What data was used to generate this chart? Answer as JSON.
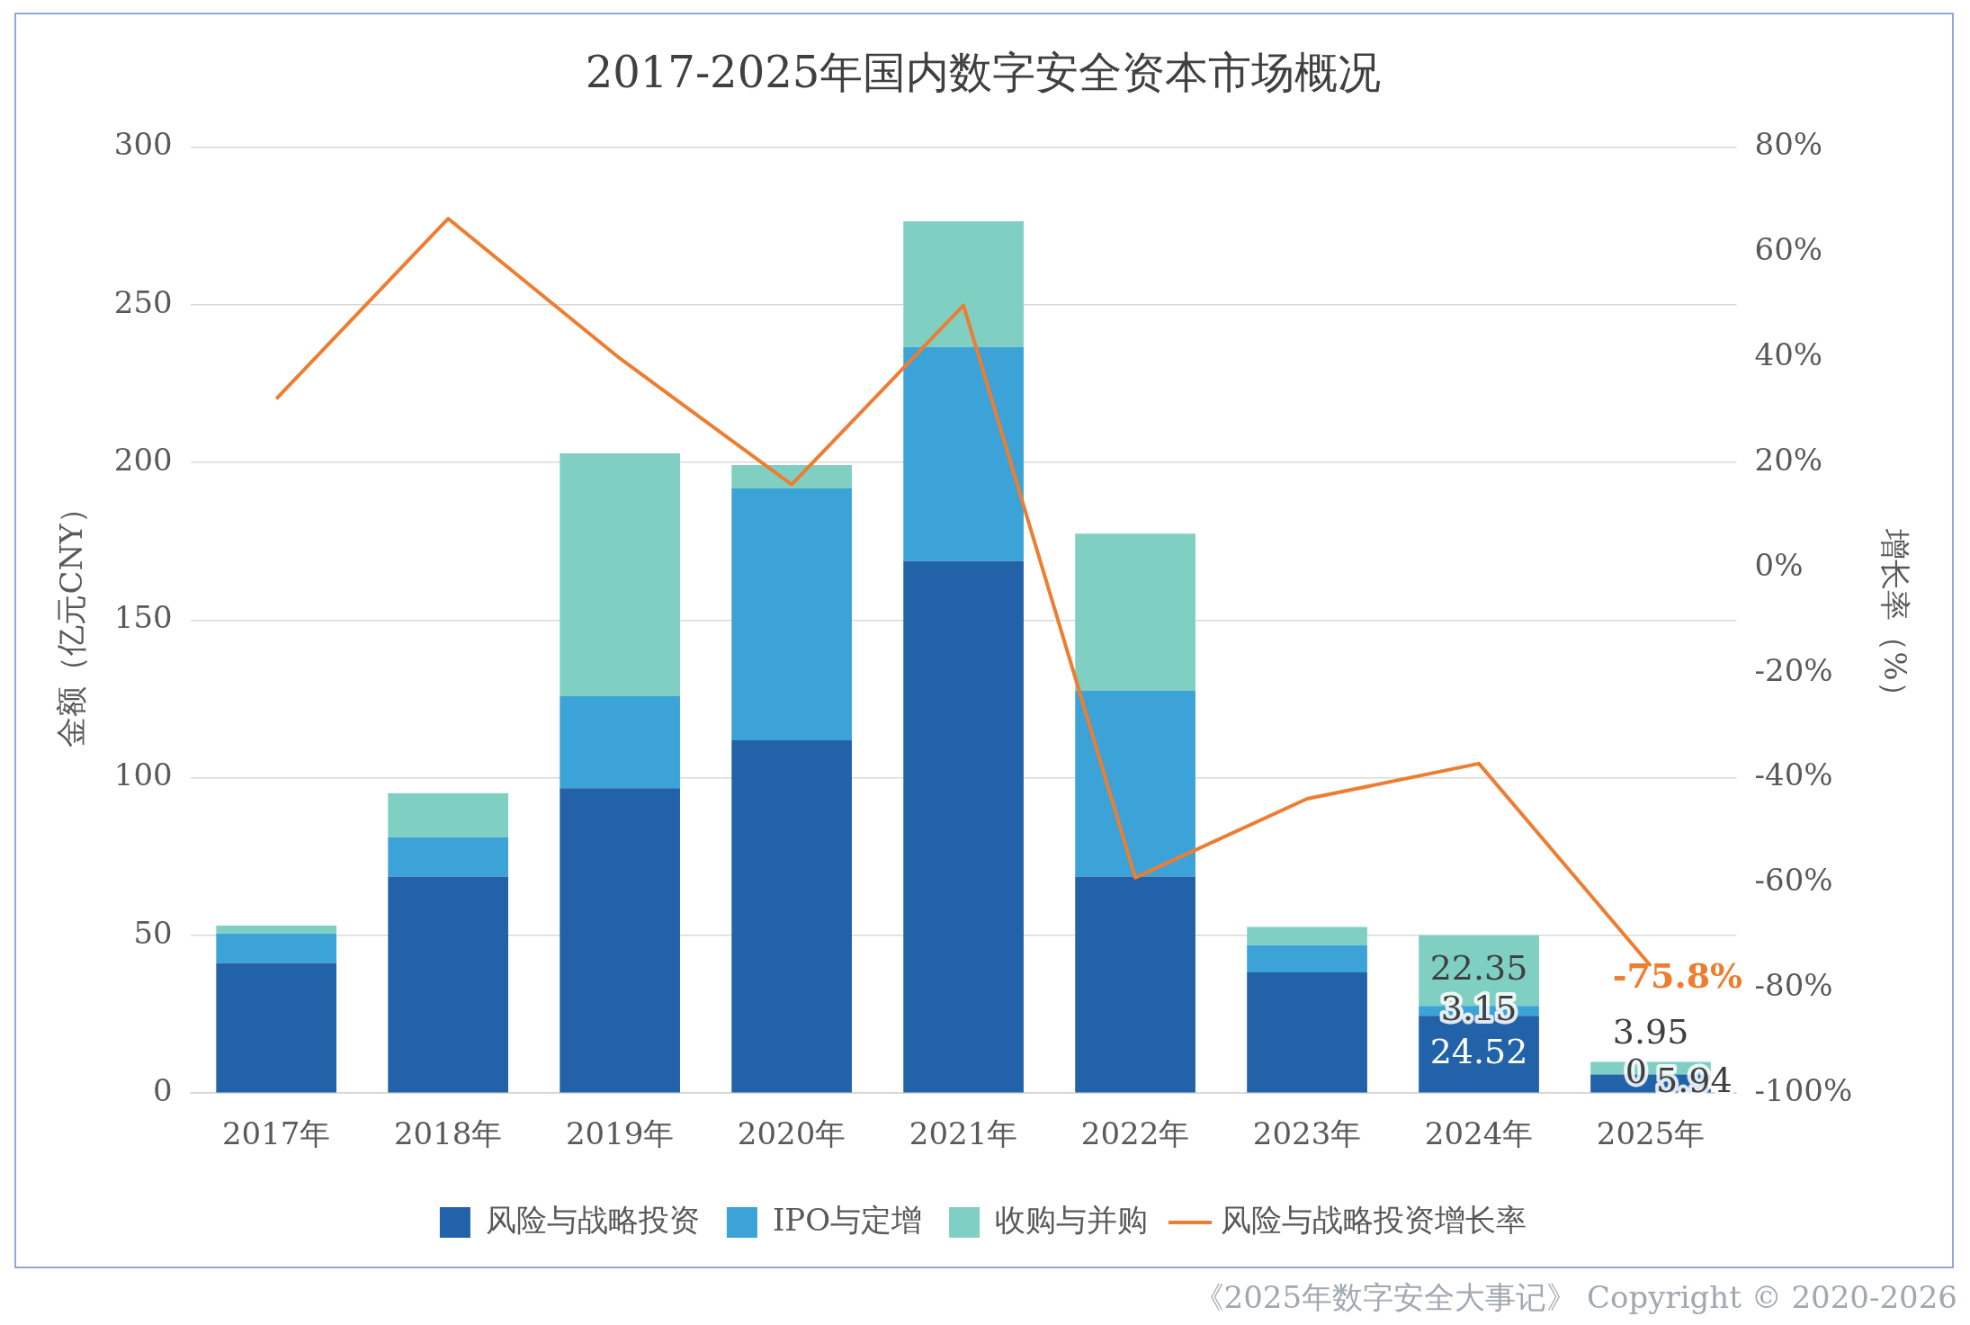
{
  "chart_data": {
    "type": "bar",
    "stacked": true,
    "title": "2017-2025年国内数字安全资本市场概况",
    "ylabel": "金额（亿元CNY）",
    "y2label": "增长率（%）",
    "categories": [
      "2017年",
      "2018年",
      "2019年",
      "2020年",
      "2021年",
      "2022年",
      "2023年",
      "2024年",
      "2025年"
    ],
    "series": [
      {
        "name": "风险与战略投资",
        "color": "#2262a8",
        "values": [
          41.2,
          68.7,
          96.7,
          111.9,
          168.7,
          68.7,
          38.3,
          24.52,
          5.94
        ],
        "value_labels": [
          null,
          null,
          null,
          null,
          null,
          null,
          null,
          "24.52",
          "5.94"
        ]
      },
      {
        "name": "IPO与定增",
        "color": "#3ca3d8",
        "values": [
          9.4,
          12.4,
          29.2,
          79.9,
          67.9,
          58.9,
          8.6,
          3.15,
          0
        ],
        "value_labels": [
          null,
          null,
          null,
          null,
          null,
          null,
          null,
          "3.15",
          "0"
        ]
      },
      {
        "name": "收购与并购",
        "color": "#7fd0c3",
        "values": [
          2.5,
          14.0,
          77.0,
          7.4,
          39.9,
          49.8,
          5.8,
          22.35,
          3.95
        ],
        "value_labels": [
          null,
          null,
          null,
          null,
          null,
          null,
          null,
          "22.35",
          "3.95"
        ]
      },
      {
        "name": "风险与战略投资增长率",
        "type": "line",
        "axis": "y2",
        "color": "#ed7d31",
        "values": [
          32.1,
          66.4,
          39.8,
          15.8,
          49.9,
          -59.0,
          -44.0,
          -37.3,
          -75.8
        ],
        "value_labels": [
          null,
          null,
          null,
          null,
          null,
          null,
          null,
          null,
          "-75.8%"
        ]
      }
    ],
    "ylim": [
      0,
      300
    ],
    "yticks": [
      0,
      50,
      100,
      150,
      200,
      250,
      300
    ],
    "y2lim": [
      -100,
      80
    ],
    "y2ticks": [
      {
        "value": -100,
        "label": "-100%"
      },
      {
        "value": -80,
        "label": "-80%"
      },
      {
        "value": -60,
        "label": "-60%"
      },
      {
        "value": -40,
        "label": "-40%"
      },
      {
        "value": -20,
        "label": "-20%"
      },
      {
        "value": 0,
        "label": "0%"
      },
      {
        "value": 20,
        "label": "20%"
      },
      {
        "value": 40,
        "label": "40%"
      },
      {
        "value": 60,
        "label": "60%"
      },
      {
        "value": 80,
        "label": "80%"
      }
    ],
    "grid": "y",
    "legend": "bottom",
    "marker": "none",
    "annotations": [
      "《2025年数字安全大事记》 Copyright © 2020-2026"
    ]
  }
}
